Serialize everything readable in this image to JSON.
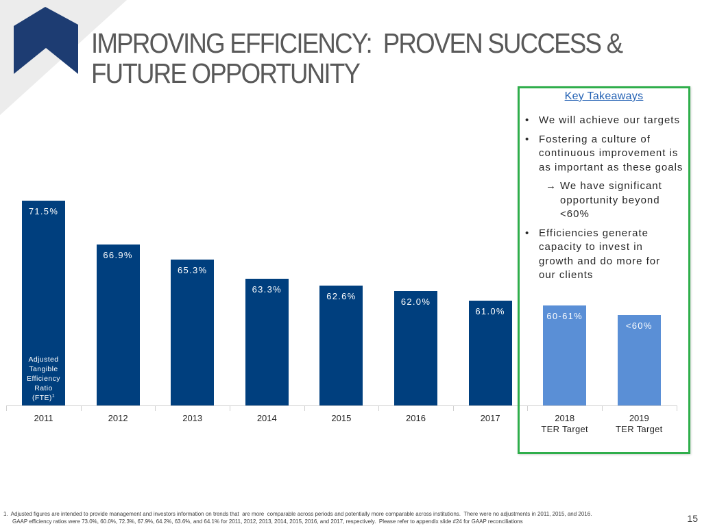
{
  "slide": {
    "title_lines": [
      "IMPROVING EFFICIENCY:  PROVEN SUCCESS &",
      "FUTURE OPPORTUNITY"
    ],
    "page_number": "15"
  },
  "colors": {
    "title": "#595959",
    "accent_green": "#2fae4b",
    "heading_blue": "#2462b4",
    "logo_navy": "#1d3c72",
    "logo_bg": "#ececec"
  },
  "takeaways": {
    "heading": "Key Takeaways",
    "items": [
      {
        "marker": "•",
        "lines": [
          "We will achieve our targets"
        ]
      },
      {
        "marker": "•",
        "lines": [
          "Fostering a culture of",
          "continuous improvement is",
          "as important as these goals"
        ]
      },
      {
        "marker": "→",
        "lines": [
          "We have significant",
          "opportunity beyond",
          "<60%"
        ]
      },
      {
        "marker": "•",
        "lines": [
          "Efficiencies generate",
          "capacity to invest in",
          "growth and do more for",
          "our clients"
        ]
      }
    ]
  },
  "chart_data": {
    "type": "bar",
    "categories": [
      "2011",
      "2012",
      "2013",
      "2014",
      "2015",
      "2016",
      "2017",
      "2018",
      "2019"
    ],
    "category_sublabels": [
      "",
      "",
      "",
      "",
      "",
      "",
      "",
      "TER Target",
      "TER Target"
    ],
    "values": [
      71.5,
      66.9,
      65.3,
      63.3,
      62.6,
      62.0,
      61.0,
      60.5,
      59.5
    ],
    "value_labels": [
      "71.5%",
      "66.9%",
      "65.3%",
      "63.3%",
      "62.6%",
      "62.0%",
      "61.0%",
      "60-61%",
      "<60%"
    ],
    "bar_colors": [
      "#003f7e",
      "#003f7e",
      "#003f7e",
      "#003f7e",
      "#003f7e",
      "#003f7e",
      "#003f7e",
      "#5a8fd6",
      "#5a8fd6"
    ],
    "ylabel": [
      "Adjusted",
      "Tangible",
      "Efficiency",
      "Ratio",
      "(FTE)"
    ],
    "ylabel_footnote": "1",
    "ylim": [
      50,
      71.5
    ],
    "grid": false,
    "legend": "none"
  },
  "footnote": {
    "lines": [
      "1.  Adjusted figures are intended to provide management and investors information on trends that  are more  comparable across periods and potentially more comparable across institutions.  There were no adjustments in 2011, 2015, and 2016.",
      "GAAP efficiency ratios were 73.0%, 60.0%, 72.3%, 67.9%, 64.2%, 63.6%, and 64.1% for 2011, 2012, 2013, 2014, 2015, 2016, and 2017, respectively.  Please refer to appendix slide #24 for GAAP reconciliations"
    ]
  }
}
